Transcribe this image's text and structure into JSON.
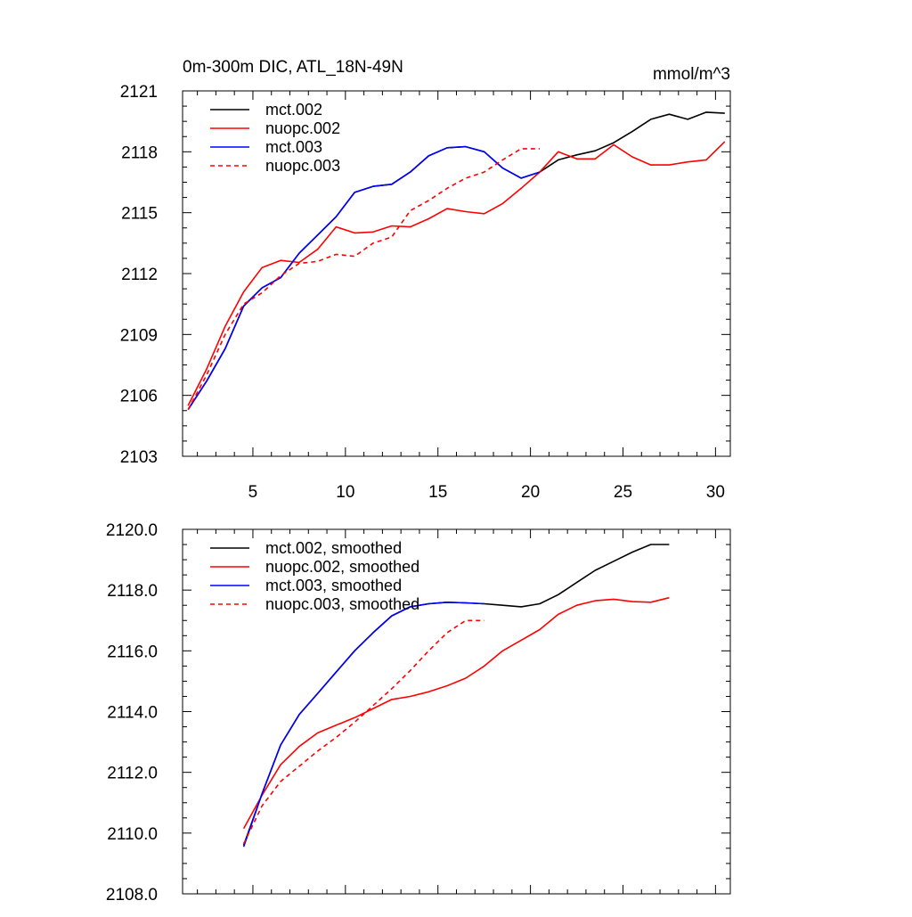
{
  "chart_data": [
    {
      "type": "line",
      "title": "0m-300m DIC, ATL_18N-49N",
      "units": "mmol/m^3",
      "xlim": [
        1.2,
        30.8
      ],
      "ylim": [
        2103,
        2121
      ],
      "xticks": [
        5,
        10,
        15,
        20,
        25,
        30
      ],
      "xtick_labels": [
        "5",
        "10",
        "15",
        "20",
        "25",
        "30"
      ],
      "yticks": [
        2103,
        2106,
        2109,
        2112,
        2115,
        2118,
        2121
      ],
      "ytick_labels": [
        "2103",
        "2106",
        "2109",
        "2112",
        "2115",
        "2118",
        "2121"
      ],
      "legend_position": "top-left",
      "series": [
        {
          "name": "mct.002",
          "color": "#000000",
          "dash": "solid",
          "x": [
            1.5,
            2.5,
            3.5,
            4.5,
            5.5,
            6.5,
            7.5,
            8.5,
            9.5,
            10.5,
            11.5,
            12.5,
            13.5,
            14.5,
            15.5,
            16.5,
            17.5,
            18.5,
            19.5,
            20.5,
            21.5,
            22.5,
            23.5,
            24.5,
            25.5,
            26.5,
            27.5,
            28.5,
            29.5,
            30.5
          ],
          "y": [
            2105.3,
            2106.7,
            2108.3,
            2110.4,
            2111.3,
            2111.8,
            2113.0,
            2113.9,
            2114.8,
            2116.0,
            2116.3,
            2116.4,
            2117.0,
            2117.8,
            2118.2,
            2118.25,
            2118.0,
            2117.2,
            2116.7,
            2117.0,
            2117.6,
            2117.85,
            2118.05,
            2118.45,
            2119.0,
            2119.6,
            2119.85,
            2119.6,
            2119.95,
            2119.9
          ]
        },
        {
          "name": "nuopc.002",
          "color": "#ff0000",
          "dash": "solid",
          "x": [
            1.5,
            2.5,
            3.5,
            4.5,
            5.5,
            6.5,
            7.5,
            8.5,
            9.5,
            10.5,
            11.5,
            12.5,
            13.5,
            14.5,
            15.5,
            16.5,
            17.5,
            18.5,
            19.5,
            20.5,
            21.5,
            22.5,
            23.5,
            24.5,
            25.5,
            26.5,
            27.5,
            28.5,
            29.5,
            30.5
          ],
          "y": [
            2105.5,
            2107.3,
            2109.4,
            2111.1,
            2112.3,
            2112.65,
            2112.55,
            2113.2,
            2114.3,
            2114.0,
            2114.05,
            2114.35,
            2114.3,
            2114.7,
            2115.2,
            2115.05,
            2114.95,
            2115.45,
            2116.2,
            2117.0,
            2118.0,
            2117.65,
            2117.65,
            2118.35,
            2117.75,
            2117.35,
            2117.35,
            2117.5,
            2117.6,
            2118.5
          ]
        },
        {
          "name": "mct.003",
          "color": "#0000ff",
          "dash": "solid",
          "x": [
            1.5,
            2.5,
            3.5,
            4.5,
            5.5,
            6.5,
            7.5,
            8.5,
            9.5,
            10.5,
            11.5,
            12.5,
            13.5,
            14.5,
            15.5,
            16.5,
            17.5,
            18.5,
            19.5,
            20.5
          ],
          "y": [
            2105.3,
            2106.7,
            2108.3,
            2110.4,
            2111.3,
            2111.8,
            2113.0,
            2113.9,
            2114.8,
            2116.0,
            2116.3,
            2116.4,
            2117.0,
            2117.8,
            2118.2,
            2118.25,
            2118.0,
            2117.2,
            2116.7,
            2117.0
          ]
        },
        {
          "name": "nuopc.003",
          "color": "#ff0000",
          "dash": "dashed",
          "x": [
            1.5,
            2.5,
            3.5,
            4.5,
            5.5,
            6.5,
            7.5,
            8.5,
            9.5,
            10.5,
            11.5,
            12.5,
            13.5,
            14.5,
            15.5,
            16.5,
            17.5,
            18.5,
            19.5,
            20.5
          ],
          "y": [
            2105.3,
            2107.0,
            2109.0,
            2110.5,
            2111.05,
            2111.9,
            2112.5,
            2112.6,
            2112.95,
            2112.85,
            2113.5,
            2113.8,
            2115.1,
            2115.6,
            2116.2,
            2116.7,
            2117.0,
            2117.6,
            2118.15,
            2118.15
          ]
        }
      ]
    },
    {
      "type": "line",
      "title": "",
      "xlim": [
        1.2,
        30.8
      ],
      "ylim": [
        2108.0,
        2120.0
      ],
      "xticks": [
        5,
        10,
        15,
        20,
        25,
        30
      ],
      "xtick_labels": [],
      "yticks": [
        2108.0,
        2110.0,
        2112.0,
        2114.0,
        2116.0,
        2118.0,
        2120.0
      ],
      "ytick_labels": [
        "2108.0",
        "2110.0",
        "2112.0",
        "2114.0",
        "2116.0",
        "2118.0",
        "2120.0"
      ],
      "legend_position": "top-left",
      "series": [
        {
          "name": "mct.002, smoothed",
          "color": "#000000",
          "dash": "solid",
          "x": [
            4.5,
            5.5,
            6.5,
            7.5,
            8.5,
            9.5,
            10.5,
            11.5,
            12.5,
            13.5,
            14.5,
            15.5,
            16.5,
            17.5,
            18.5,
            19.5,
            20.5,
            21.5,
            22.5,
            23.5,
            24.5,
            25.5,
            26.5,
            27.5
          ],
          "y": [
            2109.6,
            2111.3,
            2112.9,
            2113.9,
            2114.6,
            2115.3,
            2116.0,
            2116.6,
            2117.15,
            2117.45,
            2117.55,
            2117.6,
            2117.58,
            2117.55,
            2117.5,
            2117.45,
            2117.55,
            2117.85,
            2118.25,
            2118.65,
            2118.95,
            2119.25,
            2119.5,
            2119.5
          ]
        },
        {
          "name": "nuopc.002, smoothed",
          "color": "#ff0000",
          "dash": "solid",
          "x": [
            4.5,
            5.5,
            6.5,
            7.5,
            8.5,
            9.5,
            10.5,
            11.5,
            12.5,
            13.5,
            14.5,
            15.5,
            16.5,
            17.5,
            18.5,
            19.5,
            20.5,
            21.5,
            22.5,
            23.5,
            24.5,
            25.5,
            26.5,
            27.5
          ],
          "y": [
            2110.15,
            2111.25,
            2112.25,
            2112.85,
            2113.3,
            2113.55,
            2113.8,
            2114.1,
            2114.4,
            2114.5,
            2114.65,
            2114.85,
            2115.1,
            2115.5,
            2116.0,
            2116.35,
            2116.7,
            2117.2,
            2117.5,
            2117.65,
            2117.7,
            2117.62,
            2117.6,
            2117.75
          ]
        },
        {
          "name": "mct.003, smoothed",
          "color": "#0000ff",
          "dash": "solid",
          "x": [
            4.5,
            5.5,
            6.5,
            7.5,
            8.5,
            9.5,
            10.5,
            11.5,
            12.5,
            13.5,
            14.5,
            15.5,
            16.5,
            17.5
          ],
          "y": [
            2109.55,
            2111.3,
            2112.9,
            2113.9,
            2114.6,
            2115.3,
            2116.0,
            2116.6,
            2117.15,
            2117.45,
            2117.55,
            2117.6,
            2117.58,
            2117.55
          ]
        },
        {
          "name": "nuopc.003, smoothed",
          "color": "#ff0000",
          "dash": "dashed",
          "x": [
            4.5,
            5.5,
            6.5,
            7.5,
            8.5,
            9.5,
            10.5,
            11.5,
            12.5,
            13.5,
            14.5,
            15.5,
            16.5,
            17.5
          ],
          "y": [
            2109.65,
            2110.9,
            2111.7,
            2112.2,
            2112.7,
            2113.15,
            2113.65,
            2114.2,
            2114.75,
            2115.35,
            2116.0,
            2116.6,
            2117.0,
            2117.0
          ]
        }
      ]
    }
  ]
}
